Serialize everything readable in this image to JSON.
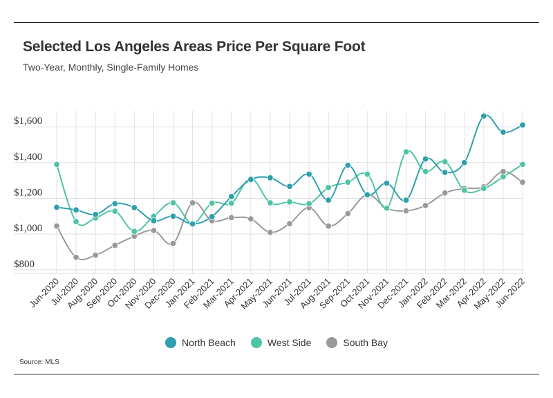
{
  "header": {
    "title": "Selected Los Angeles Areas Price Per Square Foot",
    "subtitle": "Two-Year, Monthly, Single-Family Homes"
  },
  "footer": {
    "source": "Source:  MLS"
  },
  "chart_data": {
    "type": "line",
    "title": "Selected Los Angeles Areas Price Per Square Foot",
    "subtitle": "Two-Year, Monthly, Single-Family Homes",
    "xlabel": "",
    "ylabel": "",
    "ylim": [
      780,
      1690
    ],
    "yticks": [
      800,
      1000,
      1200,
      1400,
      1600
    ],
    "ytick_labels": [
      "$800",
      "$1,000",
      "$1,200",
      "$1,400",
      "$1,600"
    ],
    "grid": true,
    "legend": "bottom",
    "categories": [
      "Jun-2020",
      "Jul-2020",
      "Aug-2020",
      "Sep-2020",
      "Oct-2020",
      "Nov-2020",
      "Dec-2020",
      "Jan-2021",
      "Feb-2021",
      "Mar-2021",
      "Apr-2021",
      "May-2021",
      "Jun-2021",
      "Jul-2021",
      "Aug-2021",
      "Sep-2021",
      "Oct-2021",
      "Nov-2021",
      "Dec-2021",
      "Jan-2022",
      "Feb-2022",
      "Mar-2022",
      "Apr-2022",
      "May-2022",
      "Jun-2022"
    ],
    "series": [
      {
        "name": "North Beach",
        "color": "#2e9fac",
        "values": [
          1150,
          1135,
          1110,
          1170,
          1148,
          1075,
          1100,
          1057,
          1098,
          1210,
          1305,
          1315,
          1267,
          1335,
          1190,
          1385,
          1220,
          1285,
          1190,
          1420,
          1345,
          1400,
          1660,
          1570,
          1610
        ]
      },
      {
        "name": "West Side",
        "color": "#4fc3a6",
        "values": [
          1390,
          1070,
          1090,
          1128,
          1015,
          1100,
          1175,
          1060,
          1173,
          1173,
          1310,
          1175,
          1180,
          1170,
          1260,
          1290,
          1335,
          1145,
          1460,
          1350,
          1405,
          1245,
          1255,
          1320,
          1390
        ]
      },
      {
        "name": "South Bay",
        "color": "#999999",
        "values": [
          1045,
          870,
          882,
          937,
          988,
          1020,
          948,
          1175,
          1075,
          1092,
          1085,
          1010,
          1058,
          1148,
          1045,
          1115,
          1220,
          1145,
          1130,
          1160,
          1230,
          1255,
          1265,
          1350,
          1290
        ]
      }
    ]
  }
}
